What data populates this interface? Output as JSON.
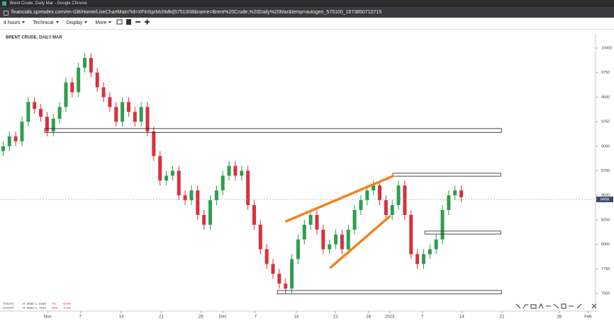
{
  "window": {
    "title": "Brent Crude, Daily Mar - Google Chrome"
  },
  "address_bar": {
    "url": "financials.spreadex.com/en-GB/Home/LiveChartMain?id=XFinSprMchMkt|5751008&name=Brent%20Crude,%20Daily%20Mar&temp=autogen_575100_1673850710715"
  },
  "toolbar": {
    "menus": [
      "4 hours",
      "Technical",
      "Display",
      "More"
    ]
  },
  "stats": [
    {
      "label": "TODAY:",
      "high": "H: 8558",
      "low": "L: 8446",
      "change": "-76",
      "percent": "-0.9%"
    },
    {
      "label": "CHART:",
      "high": "H: 9964",
      "low": "L: 7512",
      "change": "-675",
      "percent": "-7.4%"
    }
  ],
  "chart_data": {
    "type": "candlestick",
    "title": "BRENT CRUDE, DAILY MAR",
    "x": [
      0,
      1,
      2,
      3,
      4,
      5,
      6,
      7,
      8,
      9,
      10,
      11,
      12,
      13,
      14,
      15,
      16,
      17,
      18,
      19,
      20,
      21,
      22,
      23,
      24,
      25,
      26,
      27,
      28,
      29,
      30,
      31,
      32,
      33,
      34,
      35,
      36,
      37,
      38,
      39,
      40,
      41,
      42,
      43,
      44,
      45,
      46,
      47,
      48,
      49,
      50,
      51,
      52,
      53,
      54,
      55,
      56,
      57,
      58,
      59,
      60,
      61,
      62,
      63,
      64,
      65,
      66,
      67,
      68,
      69,
      70,
      71,
      72,
      73
    ],
    "open": [
      8950,
      9000,
      9100,
      9050,
      9250,
      9450,
      9380,
      9300,
      9150,
      9280,
      9400,
      9650,
      9550,
      9800,
      9900,
      9750,
      9600,
      9500,
      9400,
      9250,
      9450,
      9350,
      9250,
      9400,
      9150,
      8900,
      8650,
      8700,
      8750,
      8500,
      8450,
      8550,
      8300,
      8200,
      8450,
      8550,
      8700,
      8800,
      8700,
      8750,
      8400,
      8200,
      7950,
      7800,
      7700,
      7600,
      7550,
      7850,
      8050,
      8200,
      8300,
      8150,
      7950,
      8000,
      8100,
      7950,
      8150,
      8350,
      8450,
      8550,
      8600,
      8450,
      8300,
      8400,
      8600,
      8300,
      7900,
      7800,
      7900,
      7950,
      8050,
      8350,
      8500,
      8550
    ],
    "high": [
      9050,
      9150,
      9150,
      9300,
      9500,
      9500,
      9430,
      9350,
      9330,
      9450,
      9700,
      9700,
      9850,
      9950,
      9950,
      9800,
      9650,
      9550,
      9450,
      9500,
      9500,
      9400,
      9450,
      9450,
      9200,
      8950,
      8750,
      8800,
      8800,
      8550,
      8600,
      8600,
      8350,
      8500,
      8600,
      8750,
      8850,
      8850,
      8800,
      8800,
      8450,
      8250,
      8000,
      7850,
      7750,
      7650,
      7900,
      8100,
      8250,
      8350,
      8350,
      8200,
      8050,
      8150,
      8150,
      8200,
      8400,
      8500,
      8600,
      8650,
      8650,
      8500,
      8450,
      8650,
      8650,
      8350,
      7950,
      7950,
      8000,
      8100,
      8400,
      8550,
      8600,
      8600
    ],
    "low": [
      8900,
      8950,
      9000,
      9000,
      9200,
      9330,
      9250,
      9100,
      9100,
      9230,
      9350,
      9500,
      9500,
      9750,
      9700,
      9550,
      9450,
      9350,
      9200,
      9200,
      9300,
      9200,
      9200,
      9100,
      8850,
      8600,
      8600,
      8650,
      8450,
      8400,
      8400,
      8250,
      8150,
      8150,
      8400,
      8500,
      8650,
      8650,
      8650,
      8350,
      8150,
      7900,
      7750,
      7650,
      7550,
      7500,
      7500,
      7800,
      8000,
      8150,
      8100,
      7900,
      7900,
      7950,
      7900,
      7900,
      8100,
      8300,
      8400,
      8500,
      8400,
      8250,
      8250,
      8350,
      8250,
      7850,
      7750,
      7750,
      7850,
      7900,
      8000,
      8300,
      8450,
      8430
    ],
    "close": [
      9000,
      9100,
      9050,
      9250,
      9450,
      9380,
      9300,
      9150,
      9280,
      9400,
      9650,
      9550,
      9800,
      9900,
      9750,
      9600,
      9500,
      9400,
      9250,
      9450,
      9350,
      9250,
      9400,
      9150,
      8900,
      8650,
      8700,
      8750,
      8500,
      8450,
      8550,
      8300,
      8200,
      8450,
      8550,
      8700,
      8800,
      8700,
      8750,
      8400,
      8200,
      7950,
      7800,
      7700,
      7600,
      7550,
      7850,
      8050,
      8200,
      8300,
      8150,
      7950,
      8000,
      8100,
      7950,
      8150,
      8350,
      8450,
      8550,
      8600,
      8450,
      8300,
      8400,
      8600,
      8300,
      7900,
      7800,
      7900,
      7950,
      8050,
      8350,
      8500,
      8550,
      8480
    ],
    "up_color": "#2e9e4f",
    "down_color": "#d8313e",
    "xlim": [
      -0.5,
      94.4
    ],
    "xticks": [
      {
        "value": 7.1,
        "label": "Nov"
      },
      {
        "value": 12.3,
        "label": "7"
      },
      {
        "value": 18.8,
        "label": "14"
      },
      {
        "value": 25.2,
        "label": "21"
      },
      {
        "value": 31.5,
        "label": "28"
      },
      {
        "value": 35,
        "label": "Dec"
      },
      {
        "value": 40.2,
        "label": "7"
      },
      {
        "value": 46.7,
        "label": "14"
      },
      {
        "value": 53,
        "label": "21"
      },
      {
        "value": 58.2,
        "label": "28"
      },
      {
        "value": 61.6,
        "label": "2023"
      },
      {
        "value": 66.8,
        "label": "7"
      },
      {
        "value": 73.1,
        "label": "14"
      },
      {
        "value": 79.5,
        "label": "21"
      },
      {
        "value": 88.6,
        "label": "28"
      },
      {
        "value": 93.2,
        "label": "Feb"
      }
    ],
    "ylim": [
      7320,
      10144
    ],
    "yticks": [
      7500,
      7750,
      8000,
      8250,
      8500,
      8750,
      9000,
      9250,
      9500,
      9750,
      10000
    ],
    "current_price": 8458,
    "zones": [
      {
        "x": [
          6.6,
          79.4
        ],
        "y": [
          9140,
          9180
        ]
      },
      {
        "x": [
          62.1,
          79.3
        ],
        "y": [
          8695,
          8725
        ]
      },
      {
        "x": [
          67.2,
          79.3
        ],
        "y": [
          8105,
          8135
        ]
      },
      {
        "x": [
          43.7,
          79.4
        ],
        "y": [
          7495,
          7530
        ]
      }
    ],
    "trendlines": [
      {
        "x": [
          45.1,
          62.1
        ],
        "y": [
          8235,
          8695
        ],
        "color": "#f5821f"
      },
      {
        "x": [
          52.2,
          61.6
        ],
        "y": [
          7765,
          8285
        ],
        "color": "#f5821f"
      }
    ]
  }
}
